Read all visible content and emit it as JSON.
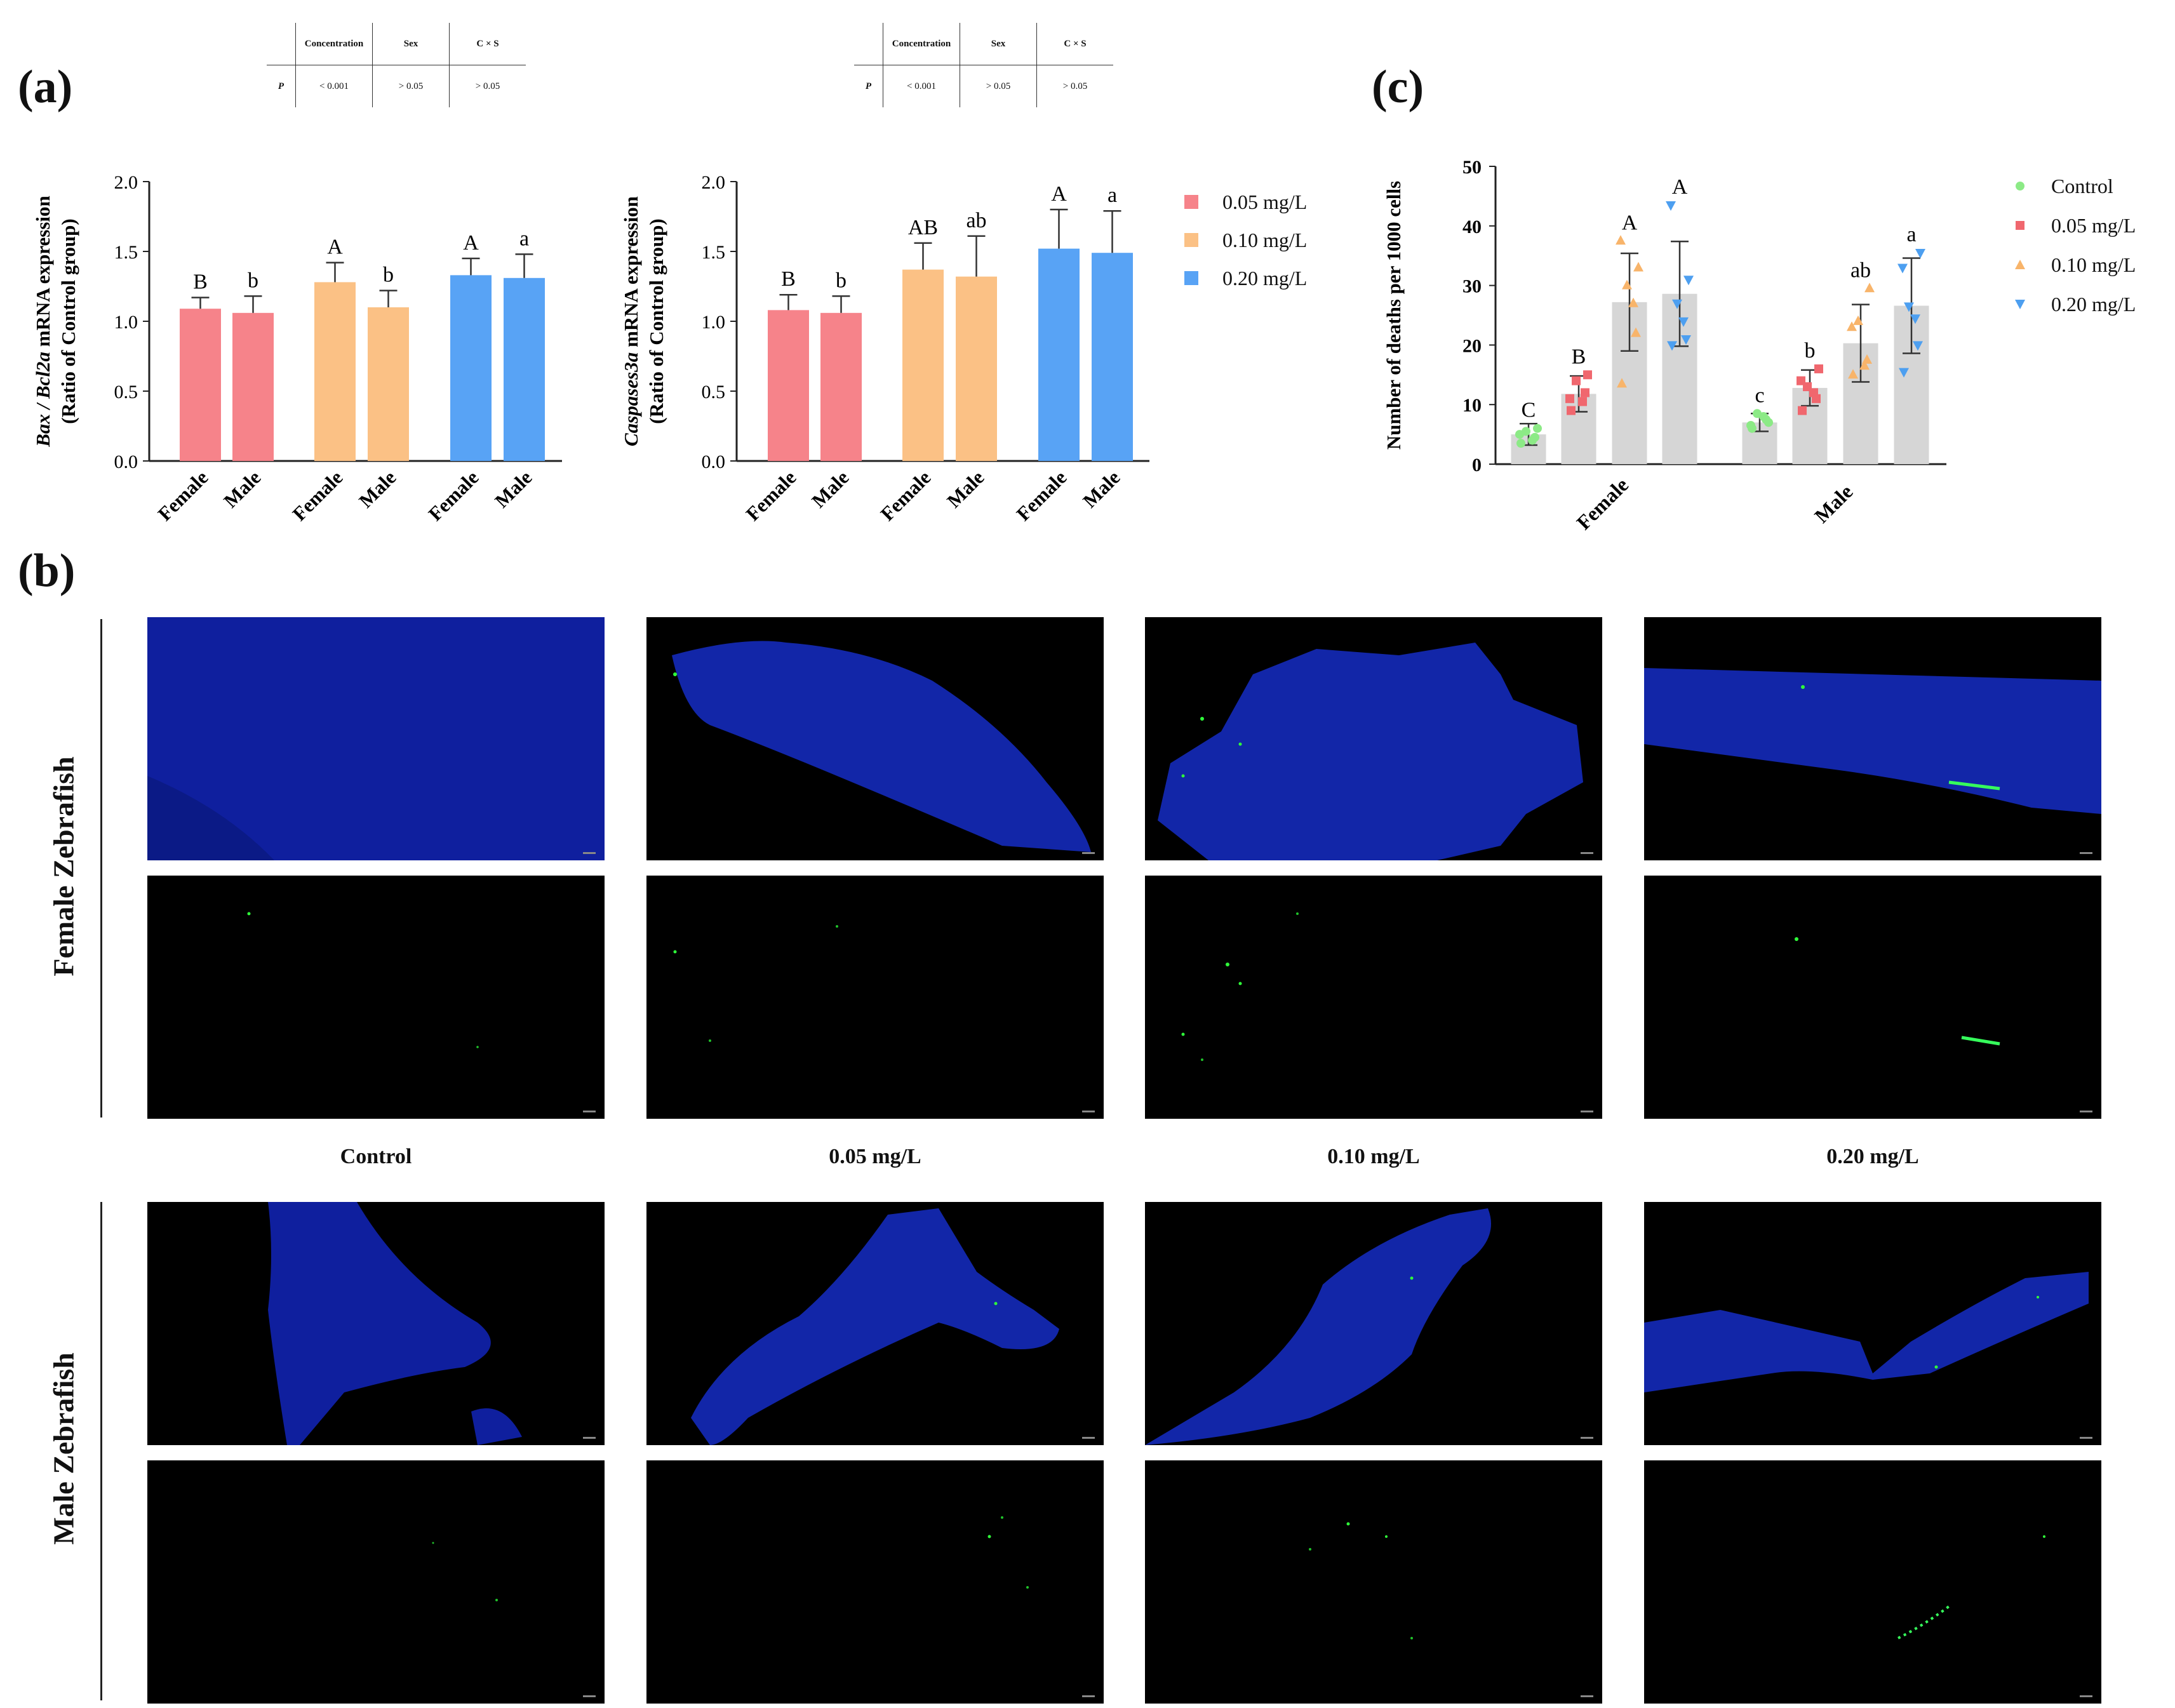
{
  "panel_labels": {
    "a": "(a)",
    "b": "(b)",
    "c": "(c)"
  },
  "stat_tables": [
    {
      "headers": [
        "Concentration",
        "Sex",
        "C × S"
      ],
      "row_label": "P",
      "values": [
        "< 0.001",
        "> 0.05",
        "> 0.05"
      ]
    },
    {
      "headers": [
        "Concentration",
        "Sex",
        "C × S"
      ],
      "row_label": "P",
      "values": [
        "< 0.001",
        "> 0.05",
        "> 0.05"
      ]
    }
  ],
  "legend_a": [
    {
      "label": "0.05 mg/L",
      "color": "#f6838a"
    },
    {
      "label": "0.10 mg/L",
      "color": "#fbc185"
    },
    {
      "label": "0.20 mg/L",
      "color": "#58a3f5"
    }
  ],
  "legend_c": [
    {
      "label": "Control",
      "color": "#8cea86",
      "marker": "circle"
    },
    {
      "label": "0.05 mg/L",
      "color": "#f0676e",
      "marker": "square"
    },
    {
      "label": "0.10 mg/L",
      "color": "#f8b46a",
      "marker": "triangle-up"
    },
    {
      "label": "0.20 mg/L",
      "color": "#4d9ff0",
      "marker": "triangle-down"
    }
  ],
  "chart_data": [
    {
      "type": "bar",
      "ylabel_italic": "Bax / Bcl2a",
      "ylabel_rest": " mRNA expression",
      "ylabel_line2": "(Ratio of Control group)",
      "ylim": [
        0,
        2.0
      ],
      "yticks": [
        "0.0",
        "0.5",
        "1.0",
        "1.5",
        "2.0"
      ],
      "categories": [
        "Female",
        "Male",
        "Female",
        "Male",
        "Female",
        "Male"
      ],
      "values": [
        1.09,
        1.06,
        1.28,
        1.1,
        1.33,
        1.31
      ],
      "errors": [
        0.08,
        0.12,
        0.14,
        0.12,
        0.12,
        0.17
      ],
      "letters": [
        "B",
        "b",
        "A",
        "b",
        "A",
        "a"
      ],
      "colors": [
        "#f6838a",
        "#f6838a",
        "#fbc185",
        "#fbc185",
        "#58a3f5",
        "#58a3f5"
      ]
    },
    {
      "type": "bar",
      "ylabel_italic": "Caspases3a",
      "ylabel_rest": " mRNA expression",
      "ylabel_line2": "(Ratio of Control group)",
      "ylim": [
        0,
        2.0
      ],
      "yticks": [
        "0.0",
        "0.5",
        "1.0",
        "1.5",
        "2.0"
      ],
      "categories": [
        "Female",
        "Male",
        "Female",
        "Male",
        "Female",
        "Male"
      ],
      "values": [
        1.08,
        1.06,
        1.37,
        1.32,
        1.52,
        1.49
      ],
      "errors": [
        0.11,
        0.12,
        0.19,
        0.29,
        0.28,
        0.3
      ],
      "letters": [
        "B",
        "b",
        "AB",
        "ab",
        "A",
        "a"
      ],
      "colors": [
        "#f6838a",
        "#f6838a",
        "#fbc185",
        "#fbc185",
        "#58a3f5",
        "#58a3f5"
      ]
    },
    {
      "type": "scatter",
      "ylabel": "Number of deaths per 1000 cells",
      "ylim": [
        0,
        50
      ],
      "yticks": [
        "0",
        "10",
        "20",
        "30",
        "40",
        "50"
      ],
      "groups": [
        "Female",
        "Male"
      ],
      "series": [
        {
          "name": "Control",
          "color": "#8cea86",
          "marker": "circle",
          "means": [
            5.0,
            7.0
          ],
          "errors": [
            1.8,
            1.5
          ],
          "letters": [
            "C",
            "c"
          ],
          "points": [
            [
              3.5,
              4.5,
              5.5,
              6.0,
              5.0,
              4.0
            ],
            [
              6.0,
              7.5,
              8.5,
              7.0,
              6.5,
              8.0
            ]
          ]
        },
        {
          "name": "0.05 mg/L",
          "color": "#f0676e",
          "marker": "square",
          "means": [
            11.8,
            12.8
          ],
          "errors": [
            3.0,
            3.0
          ],
          "letters": [
            "B",
            "b"
          ],
          "points": [
            [
              9.0,
              12.0,
              14.0,
              15.0,
              11.0,
              10.5
            ],
            [
              9.0,
              11.0,
              13.0,
              16.0,
              14.0,
              12.0
            ]
          ]
        },
        {
          "name": "0.10 mg/L",
          "color": "#f8b46a",
          "marker": "triangle-up",
          "means": [
            27.2,
            20.3
          ],
          "errors": [
            8.2,
            6.5
          ],
          "letters": [
            "A",
            "ab"
          ],
          "points": [
            [
              13.5,
              22.0,
              30.0,
              33.0,
              37.5,
              27.0
            ],
            [
              15.0,
              17.5,
              24.0,
              29.5,
              23.0,
              16.5
            ]
          ]
        },
        {
          "name": "0.20 mg/L",
          "color": "#4d9ff0",
          "marker": "triangle-down",
          "means": [
            28.6,
            26.6
          ],
          "errors": [
            8.8,
            8.0
          ],
          "letters": [
            "A",
            "a"
          ],
          "points": [
            [
              20.0,
              21.0,
              27.0,
              31.0,
              43.5,
              24.0
            ],
            [
              15.5,
              20.0,
              26.5,
              35.5,
              33.0,
              24.5
            ]
          ]
        }
      ]
    }
  ],
  "microscopy": {
    "column_labels": [
      "Control",
      "0.05 mg/L",
      "0.10 mg/L",
      "0.20 mg/L"
    ],
    "row_labels": [
      "Female Zebrafish",
      "Male Zebrafish"
    ]
  }
}
